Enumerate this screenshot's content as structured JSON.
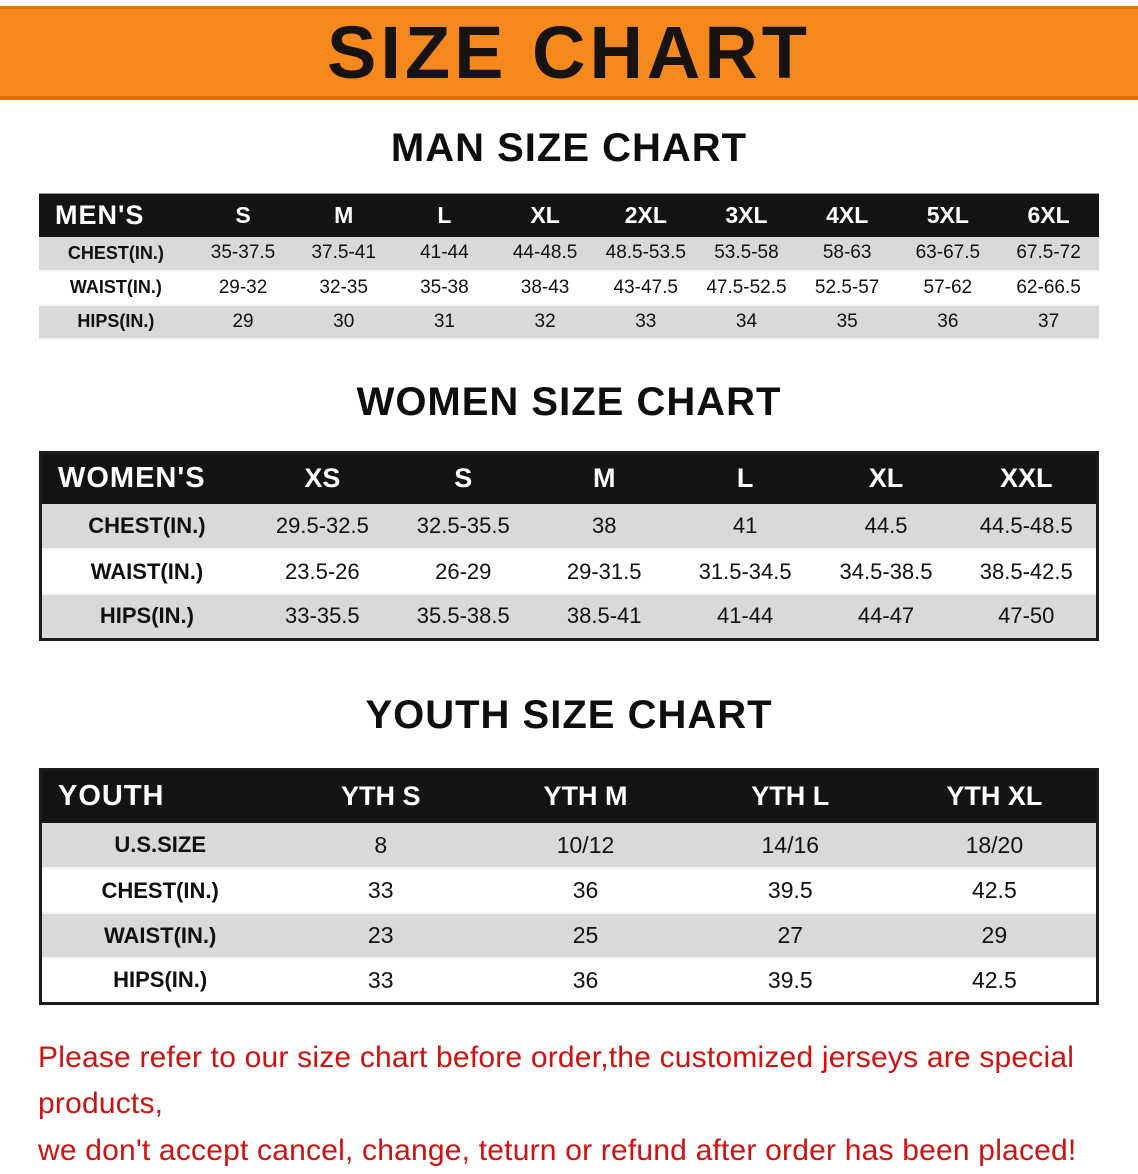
{
  "banner": {
    "title": "SIZE CHART",
    "bg_color": "#f6891e",
    "text_color": "#161310"
  },
  "colors": {
    "header_bg": "#141414",
    "row_gray": "#d9d9d9",
    "notice_red": "#cf1110"
  },
  "sections": [
    {
      "heading": "MAN SIZE CHART",
      "table": {
        "header_label": "MEN'S",
        "columns": [
          "S",
          "M",
          "L",
          "XL",
          "2XL",
          "3XL",
          "4XL",
          "5XL",
          "6XL"
        ],
        "rows": [
          {
            "label": "CHEST(IN.)",
            "values": [
              "35-37.5",
              "37.5-41",
              "41-44",
              "44-48.5",
              "48.5-53.5",
              "53.5-58",
              "58-63",
              "63-67.5",
              "67.5-72"
            ]
          },
          {
            "label": "WAIST(IN.)",
            "values": [
              "29-32",
              "32-35",
              "35-38",
              "38-43",
              "43-47.5",
              "47.5-52.5",
              "52.5-57",
              "57-62",
              "62-66.5"
            ]
          },
          {
            "label": "HIPS(IN.)",
            "values": [
              "29",
              "30",
              "31",
              "32",
              "33",
              "34",
              "35",
              "36",
              "37"
            ]
          }
        ]
      }
    },
    {
      "heading": "WOMEN SIZE CHART",
      "table": {
        "header_label": "WOMEN'S",
        "columns": [
          "XS",
          "S",
          "M",
          "L",
          "XL",
          "XXL"
        ],
        "rows": [
          {
            "label": "CHEST(IN.)",
            "values": [
              "29.5-32.5",
              "32.5-35.5",
              "38",
              "41",
              "44.5",
              "44.5-48.5"
            ]
          },
          {
            "label": "WAIST(IN.)",
            "values": [
              "23.5-26",
              "26-29",
              "29-31.5",
              "31.5-34.5",
              "34.5-38.5",
              "38.5-42.5"
            ]
          },
          {
            "label": "HIPS(IN.)",
            "values": [
              "33-35.5",
              "35.5-38.5",
              "38.5-41",
              "41-44",
              "44-47",
              "47-50"
            ]
          }
        ]
      }
    },
    {
      "heading": "YOUTH SIZE CHART",
      "table": {
        "header_label": "YOUTH",
        "columns": [
          "YTH S",
          "YTH M",
          "YTH L",
          "YTH XL"
        ],
        "rows": [
          {
            "label": "U.S.SIZE",
            "values": [
              "8",
              "10/12",
              "14/16",
              "18/20"
            ]
          },
          {
            "label": "CHEST(IN.)",
            "values": [
              "33",
              "36",
              "39.5",
              "42.5"
            ]
          },
          {
            "label": "WAIST(IN.)",
            "values": [
              "23",
              "25",
              "27",
              "29"
            ]
          },
          {
            "label": "HIPS(IN.)",
            "values": [
              "33",
              "36",
              "39.5",
              "42.5"
            ]
          }
        ]
      }
    }
  ],
  "footer": {
    "line1": "Please refer to our size chart before order,the customized jerseys are special products,",
    "line2": "we don't accept cancel, change, teturn or refund after order has been placed!"
  }
}
